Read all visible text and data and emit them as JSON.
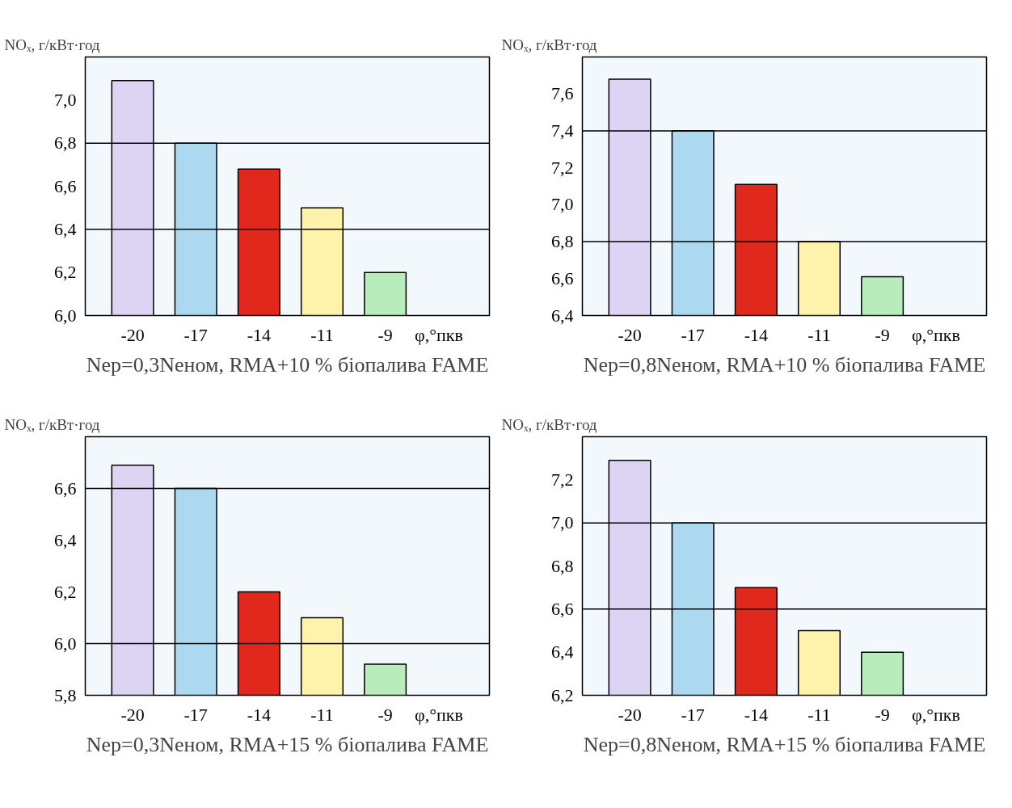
{
  "chart_data": [
    {
      "type": "bar",
      "title": "Nер=0,3Nеном, RMA+10 % біопалива FAME",
      "ylabel": "NOₓ, г/кВт·год",
      "xlabel": "φ,°пкв",
      "categories": [
        "-20",
        "-17",
        "-14",
        "-11",
        "-9"
      ],
      "values": [
        7.09,
        6.8,
        6.68,
        6.5,
        6.2
      ],
      "colors": [
        "#dcd4f2",
        "#acd9f0",
        "#e0291c",
        "#fff3ab",
        "#b8ecba"
      ],
      "ylim": [
        6.0,
        7.2
      ],
      "yticks": [
        {
          "value": 6.0,
          "label": "6,0"
        },
        {
          "value": 6.2,
          "label": "6,2"
        },
        {
          "value": 6.4,
          "label": "6,4"
        },
        {
          "value": 6.6,
          "label": "6,6"
        },
        {
          "value": 6.8,
          "label": "6,8"
        },
        {
          "value": 7.0,
          "label": "7,0"
        }
      ],
      "ref_lines": [
        {
          "axis": "y",
          "value": 6.4
        },
        {
          "axis": "y",
          "value": 6.8
        }
      ]
    },
    {
      "type": "bar",
      "title": "Nер=0,8Nеном, RMA+10 % біопалива FAME",
      "ylabel": "NOₓ, г/кВт·год",
      "xlabel": "φ,°пкв",
      "categories": [
        "-20",
        "-17",
        "-14",
        "-11",
        "-9"
      ],
      "values": [
        7.68,
        7.4,
        7.11,
        6.8,
        6.61
      ],
      "colors": [
        "#dcd4f2",
        "#acd9f0",
        "#e0291c",
        "#fff3ab",
        "#b8ecba"
      ],
      "ylim": [
        6.4,
        7.8
      ],
      "yticks": [
        {
          "value": 6.4,
          "label": "6,4"
        },
        {
          "value": 6.6,
          "label": "6,6"
        },
        {
          "value": 6.8,
          "label": "6,8"
        },
        {
          "value": 7.0,
          "label": "7,0"
        },
        {
          "value": 7.2,
          "label": "7,2"
        },
        {
          "value": 7.4,
          "label": "7,4"
        },
        {
          "value": 7.6,
          "label": "7,6"
        }
      ],
      "ref_lines": [
        {
          "axis": "y",
          "value": 6.8
        },
        {
          "axis": "y",
          "value": 7.4
        }
      ]
    },
    {
      "type": "bar",
      "title": "Nер=0,3Nеном, RMA+15 % біопалива FAME",
      "ylabel": "NOₓ, г/кВт·год",
      "xlabel": "φ,°пкв",
      "categories": [
        "-20",
        "-17",
        "-14",
        "-11",
        "-9"
      ],
      "values": [
        6.69,
        6.6,
        6.2,
        6.1,
        5.92
      ],
      "colors": [
        "#dcd4f2",
        "#acd9f0",
        "#e0291c",
        "#fff3ab",
        "#b8ecba"
      ],
      "ylim": [
        5.8,
        6.8
      ],
      "yticks": [
        {
          "value": 5.8,
          "label": "5,8"
        },
        {
          "value": 6.0,
          "label": "6,0"
        },
        {
          "value": 6.2,
          "label": "6,2"
        },
        {
          "value": 6.4,
          "label": "6,4"
        },
        {
          "value": 6.6,
          "label": "6,6"
        }
      ],
      "ref_lines": [
        {
          "axis": "y",
          "value": 6.0
        },
        {
          "axis": "y",
          "value": 6.6
        }
      ]
    },
    {
      "type": "bar",
      "title": "Nер=0,8Nеном, RMA+15 % біопалива FAME",
      "ylabel": "NOₓ, г/кВт·год",
      "xlabel": "φ,°пкв",
      "categories": [
        "-20",
        "-17",
        "-14",
        "-11",
        "-9"
      ],
      "values": [
        7.29,
        7.0,
        6.7,
        6.5,
        6.4
      ],
      "colors": [
        "#dcd4f2",
        "#acd9f0",
        "#e0291c",
        "#fff3ab",
        "#b8ecba"
      ],
      "ylim": [
        6.2,
        7.4
      ],
      "yticks": [
        {
          "value": 6.2,
          "label": "6,2"
        },
        {
          "value": 6.4,
          "label": "6,4"
        },
        {
          "value": 6.6,
          "label": "6,6"
        },
        {
          "value": 6.8,
          "label": "6,8"
        },
        {
          "value": 7.0,
          "label": "7,0"
        },
        {
          "value": 7.2,
          "label": "7,2"
        }
      ],
      "ref_lines": [
        {
          "axis": "y",
          "value": 6.6
        },
        {
          "axis": "y",
          "value": 7.0
        }
      ]
    }
  ]
}
